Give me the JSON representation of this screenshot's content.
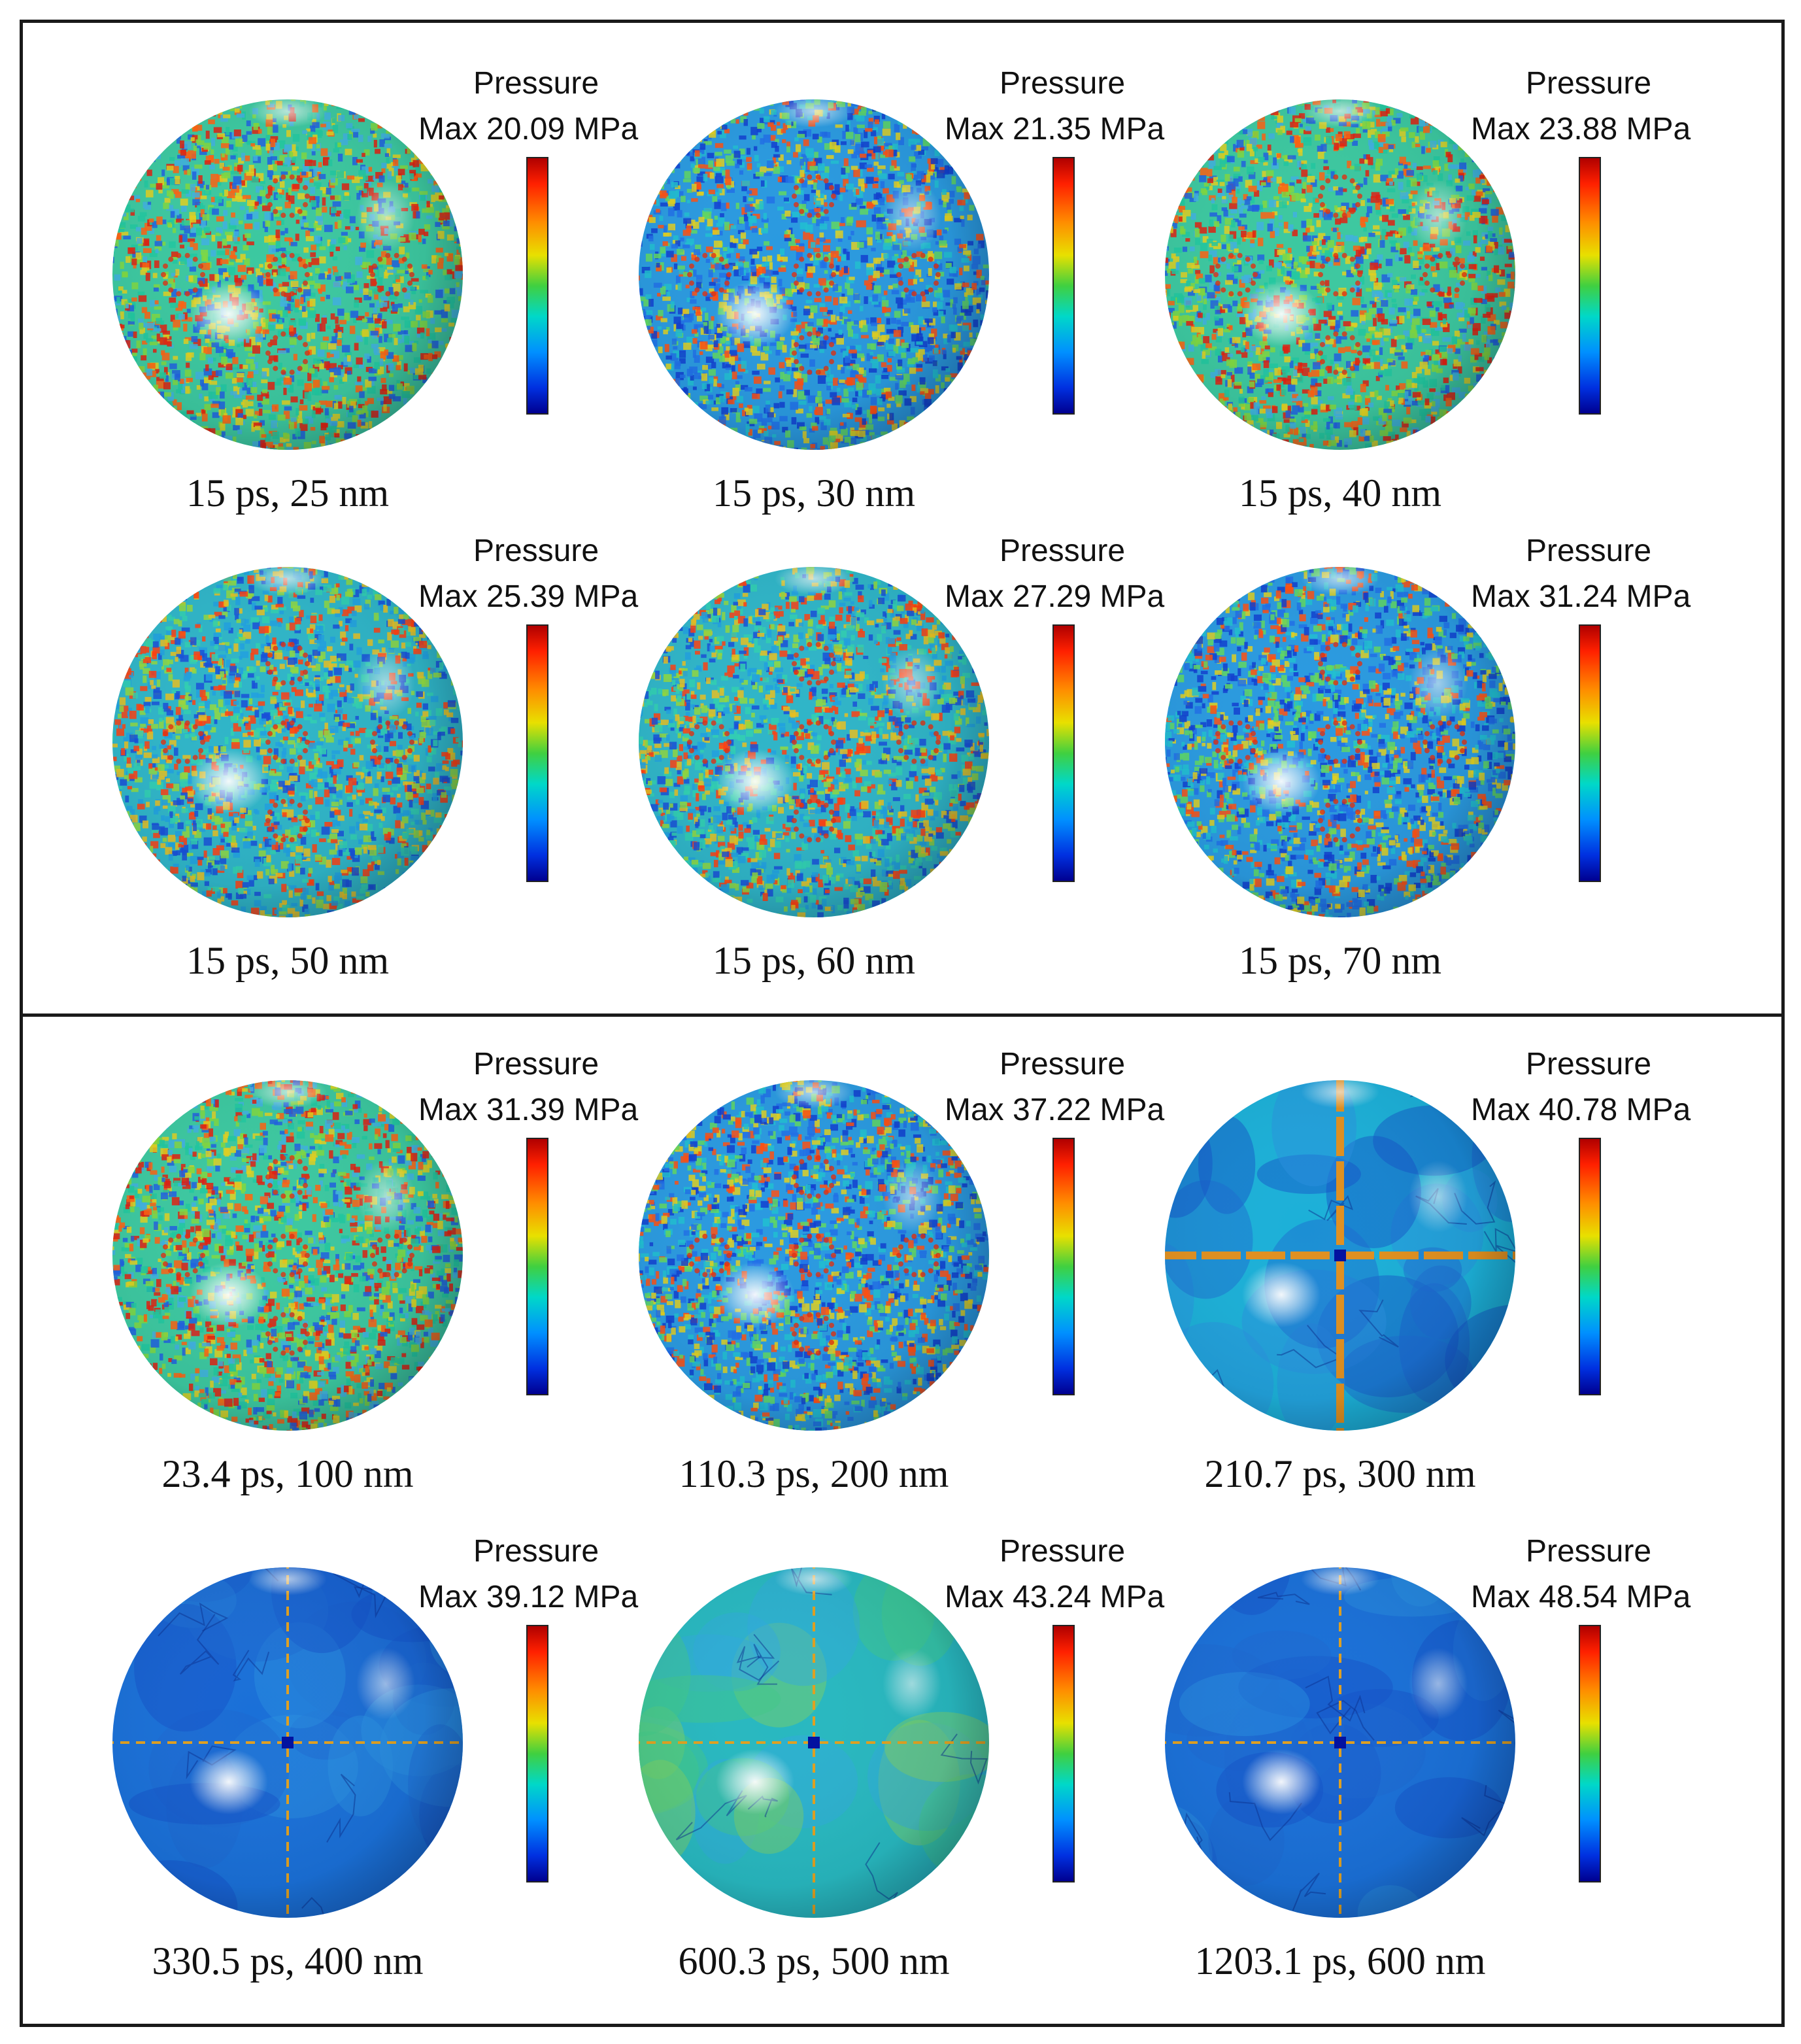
{
  "colorbar_title": "Pressure",
  "colors": {
    "max": "#d00000",
    "min": "#000090",
    "mid": "#40d040",
    "frame": "#1a1a1a"
  },
  "panels": [
    {
      "max_label": "Max 20.09 MPa",
      "caption": "15 ps, 25 nm",
      "style": "noisy-warm"
    },
    {
      "max_label": "Max 21.35 MPa",
      "caption": "15 ps, 30 nm",
      "style": "noisy-cool"
    },
    {
      "max_label": "Max 23.88 MPa",
      "caption": "15 ps, 40 nm",
      "style": "noisy-warm"
    },
    {
      "max_label": "Max 25.39 MPa",
      "caption": "15 ps, 50 nm",
      "style": "noisy-mid"
    },
    {
      "max_label": "Max 27.29 MPa",
      "caption": "15 ps, 60 nm",
      "style": "noisy-mid"
    },
    {
      "max_label": "Max 31.24 MPa",
      "caption": "15 ps, 70 nm",
      "style": "noisy-cool"
    },
    {
      "max_label": "Max 31.39 MPa",
      "caption": "23.4 ps, 100 nm",
      "style": "noisy-warm"
    },
    {
      "max_label": "Max 37.22 MPa",
      "caption": "110.3 ps, 200 nm",
      "style": "noisy-cool"
    },
    {
      "max_label": "Max 40.78 MPa",
      "caption": "210.7 ps, 300 nm",
      "style": "smooth-cross"
    },
    {
      "max_label": "Max 39.12 MPa",
      "caption": "330.5 ps, 400 nm",
      "style": "smooth-blue"
    },
    {
      "max_label": "Max 43.24 MPa",
      "caption": "600.3 ps, 500 nm",
      "style": "smooth-green"
    },
    {
      "max_label": "Max 48.54 MPa",
      "caption": "1203.1 ps, 600 nm",
      "style": "smooth-blue"
    }
  ]
}
